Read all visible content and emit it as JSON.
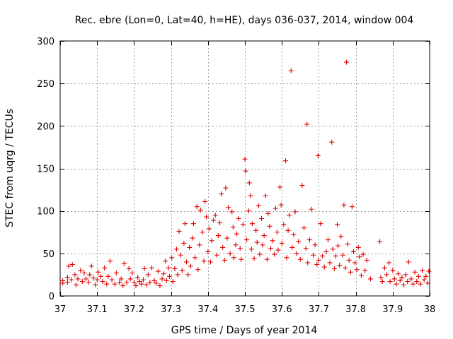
{
  "chart_data": {
    "type": "scatter",
    "title": "Rec. ebre (Lon=0, Lat=40, h=HE), days 036-037, 2014, window 004",
    "xlabel": "GPS time / Days of year 2014",
    "ylabel": "STEC from uqrg / TECUs",
    "xlim": [
      37,
      38
    ],
    "ylim": [
      0,
      300
    ],
    "xticks": [
      37,
      37.1,
      37.2,
      37.3,
      37.4,
      37.5,
      37.6,
      37.7,
      37.8,
      37.9,
      38
    ],
    "xtick_labels": [
      "37",
      "37.1",
      "37.2",
      "37.3",
      "37.4",
      "37.5",
      "37.6",
      "37.7",
      "37.8",
      "37.9",
      "38"
    ],
    "yticks": [
      0,
      50,
      100,
      150,
      200,
      250,
      300
    ],
    "ytick_labels": [
      "0",
      "50",
      "100",
      "150",
      "200",
      "250",
      "300"
    ],
    "grid": true,
    "marker": "+",
    "color": "#e00000",
    "points": [
      [
        37.007,
        15
      ],
      [
        37.007,
        18
      ],
      [
        37.02,
        16
      ],
      [
        37.02,
        22
      ],
      [
        37.023,
        35
      ],
      [
        37.03,
        19
      ],
      [
        37.033,
        37
      ],
      [
        37.04,
        25
      ],
      [
        37.043,
        13
      ],
      [
        37.048,
        20
      ],
      [
        37.055,
        30
      ],
      [
        37.06,
        17
      ],
      [
        37.065,
        27
      ],
      [
        37.07,
        20
      ],
      [
        37.077,
        16
      ],
      [
        37.08,
        25
      ],
      [
        37.085,
        35
      ],
      [
        37.09,
        21
      ],
      [
        37.095,
        13
      ],
      [
        37.1,
        19
      ],
      [
        37.103,
        28
      ],
      [
        37.11,
        23
      ],
      [
        37.115,
        17
      ],
      [
        37.12,
        33
      ],
      [
        37.126,
        14
      ],
      [
        37.13,
        23
      ],
      [
        37.135,
        41
      ],
      [
        37.14,
        19
      ],
      [
        37.148,
        14
      ],
      [
        37.152,
        27
      ],
      [
        37.16,
        16
      ],
      [
        37.165,
        20
      ],
      [
        37.17,
        12
      ],
      [
        37.173,
        38
      ],
      [
        37.18,
        16
      ],
      [
        37.186,
        32
      ],
      [
        37.19,
        20
      ],
      [
        37.195,
        27
      ],
      [
        37.2,
        16
      ],
      [
        37.205,
        12
      ],
      [
        37.21,
        22
      ],
      [
        37.215,
        17
      ],
      [
        37.22,
        14
      ],
      [
        37.225,
        19
      ],
      [
        37.228,
        32
      ],
      [
        37.233,
        13
      ],
      [
        37.238,
        25
      ],
      [
        37.243,
        16
      ],
      [
        37.248,
        33
      ],
      [
        37.255,
        18
      ],
      [
        37.26,
        15
      ],
      [
        37.265,
        29
      ],
      [
        37.27,
        12
      ],
      [
        37.276,
        20
      ],
      [
        37.28,
        26
      ],
      [
        37.285,
        41
      ],
      [
        37.288,
        18
      ],
      [
        37.293,
        33
      ],
      [
        37.296,
        23
      ],
      [
        37.302,
        45
      ],
      [
        37.305,
        17
      ],
      [
        37.31,
        32
      ],
      [
        37.315,
        55
      ],
      [
        37.318,
        25
      ],
      [
        37.322,
        76
      ],
      [
        37.326,
        48
      ],
      [
        37.33,
        30
      ],
      [
        37.335,
        62
      ],
      [
        37.338,
        85
      ],
      [
        37.342,
        40
      ],
      [
        37.346,
        25
      ],
      [
        37.35,
        57
      ],
      [
        37.353,
        35
      ],
      [
        37.358,
        68
      ],
      [
        37.361,
        85
      ],
      [
        37.365,
        45
      ],
      [
        37.37,
        105
      ],
      [
        37.373,
        31
      ],
      [
        37.377,
        60
      ],
      [
        37.38,
        101
      ],
      [
        37.385,
        75
      ],
      [
        37.389,
        41
      ],
      [
        37.392,
        111
      ],
      [
        37.396,
        93
      ],
      [
        37.4,
        52
      ],
      [
        37.403,
        79
      ],
      [
        37.407,
        40
      ],
      [
        37.41,
        65
      ],
      [
        37.415,
        89
      ],
      [
        37.42,
        95
      ],
      [
        37.424,
        48
      ],
      [
        37.428,
        71
      ],
      [
        37.432,
        86
      ],
      [
        37.436,
        120
      ],
      [
        37.44,
        57
      ],
      [
        37.445,
        42
      ],
      [
        37.448,
        127
      ],
      [
        37.452,
        68
      ],
      [
        37.455,
        104
      ],
      [
        37.46,
        50
      ],
      [
        37.465,
        99
      ],
      [
        37.468,
        81
      ],
      [
        37.47,
        45
      ],
      [
        37.475,
        60
      ],
      [
        37.478,
        73
      ],
      [
        37.483,
        91
      ],
      [
        37.487,
        56
      ],
      [
        37.49,
        43
      ],
      [
        37.495,
        84
      ],
      [
        37.5,
        161
      ],
      [
        37.502,
        147
      ],
      [
        37.505,
        66
      ],
      [
        37.51,
        100
      ],
      [
        37.512,
        133
      ],
      [
        37.515,
        118
      ],
      [
        37.518,
        55
      ],
      [
        37.52,
        85
      ],
      [
        37.525,
        44
      ],
      [
        37.53,
        77
      ],
      [
        37.533,
        63
      ],
      [
        37.537,
        106
      ],
      [
        37.54,
        49
      ],
      [
        37.545,
        91
      ],
      [
        37.548,
        60
      ],
      [
        37.552,
        71
      ],
      [
        37.556,
        118
      ],
      [
        37.56,
        43
      ],
      [
        37.563,
        97
      ],
      [
        37.567,
        82
      ],
      [
        37.57,
        56
      ],
      [
        37.575,
        65
      ],
      [
        37.58,
        49
      ],
      [
        37.583,
        103
      ],
      [
        37.587,
        75
      ],
      [
        37.59,
        54
      ],
      [
        37.595,
        128
      ],
      [
        37.598,
        107
      ],
      [
        37.6,
        62
      ],
      [
        37.605,
        84
      ],
      [
        37.61,
        159
      ],
      [
        37.613,
        45
      ],
      [
        37.617,
        77
      ],
      [
        37.62,
        95
      ],
      [
        37.625,
        265
      ],
      [
        37.628,
        57
      ],
      [
        37.632,
        72
      ],
      [
        37.636,
        99
      ],
      [
        37.64,
        50
      ],
      [
        37.645,
        64
      ],
      [
        37.65,
        43
      ],
      [
        37.655,
        130
      ],
      [
        37.66,
        80
      ],
      [
        37.665,
        56
      ],
      [
        37.668,
        202
      ],
      [
        37.67,
        39
      ],
      [
        37.675,
        66
      ],
      [
        37.68,
        102
      ],
      [
        37.685,
        48
      ],
      [
        37.69,
        60
      ],
      [
        37.695,
        37
      ],
      [
        37.698,
        165
      ],
      [
        37.7,
        42
      ],
      [
        37.705,
        85
      ],
      [
        37.71,
        47
      ],
      [
        37.715,
        34
      ],
      [
        37.72,
        52
      ],
      [
        37.725,
        66
      ],
      [
        37.73,
        39
      ],
      [
        37.735,
        181
      ],
      [
        37.738,
        55
      ],
      [
        37.742,
        32
      ],
      [
        37.746,
        47
      ],
      [
        37.75,
        84
      ],
      [
        37.752,
        59
      ],
      [
        37.756,
        36
      ],
      [
        37.76,
        70
      ],
      [
        37.765,
        48
      ],
      [
        37.768,
        107
      ],
      [
        37.772,
        33
      ],
      [
        37.775,
        275
      ],
      [
        37.778,
        61
      ],
      [
        37.782,
        42
      ],
      [
        37.786,
        28
      ],
      [
        37.79,
        105
      ],
      [
        37.794,
        52
      ],
      [
        37.798,
        39
      ],
      [
        37.803,
        31
      ],
      [
        37.807,
        57
      ],
      [
        37.81,
        46
      ],
      [
        37.815,
        24
      ],
      [
        37.82,
        49
      ],
      [
        37.825,
        30
      ],
      [
        37.83,
        42
      ],
      [
        37.84,
        20
      ],
      [
        37.865,
        64
      ],
      [
        37.868,
        22
      ],
      [
        37.872,
        17
      ],
      [
        37.878,
        33
      ],
      [
        37.884,
        25
      ],
      [
        37.89,
        39
      ],
      [
        37.893,
        17
      ],
      [
        37.9,
        30
      ],
      [
        37.905,
        20
      ],
      [
        37.91,
        14
      ],
      [
        37.915,
        26
      ],
      [
        37.92,
        18
      ],
      [
        37.925,
        22
      ],
      [
        37.93,
        13
      ],
      [
        37.935,
        25
      ],
      [
        37.94,
        17
      ],
      [
        37.943,
        40
      ],
      [
        37.95,
        20
      ],
      [
        37.955,
        14
      ],
      [
        37.96,
        28
      ],
      [
        37.965,
        17
      ],
      [
        37.97,
        23
      ],
      [
        37.975,
        14
      ],
      [
        37.98,
        30
      ],
      [
        37.985,
        19
      ],
      [
        37.99,
        23
      ],
      [
        37.995,
        15
      ],
      [
        37.998,
        29
      ]
    ]
  }
}
